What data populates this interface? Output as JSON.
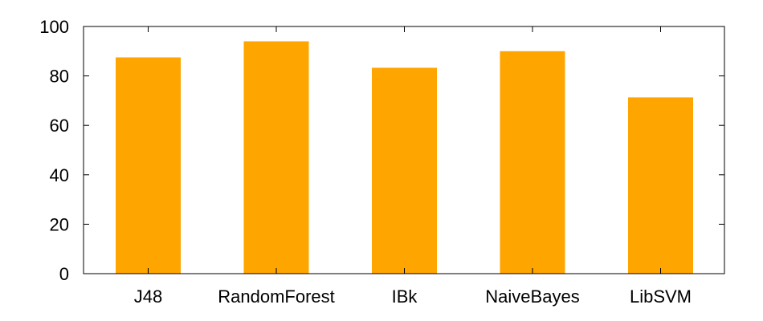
{
  "chart_data": {
    "type": "bar",
    "categories": [
      "J48",
      "RandomForest",
      "IBk",
      "NaiveBayes",
      "LibSVM"
    ],
    "values": [
      87.5,
      94,
      83.3,
      90,
      71.3
    ],
    "ylim": [
      0,
      100
    ],
    "yticks": [
      0,
      20,
      40,
      60,
      80,
      100
    ],
    "bar_color": "#ffa500",
    "grid": false,
    "legend": "none"
  }
}
